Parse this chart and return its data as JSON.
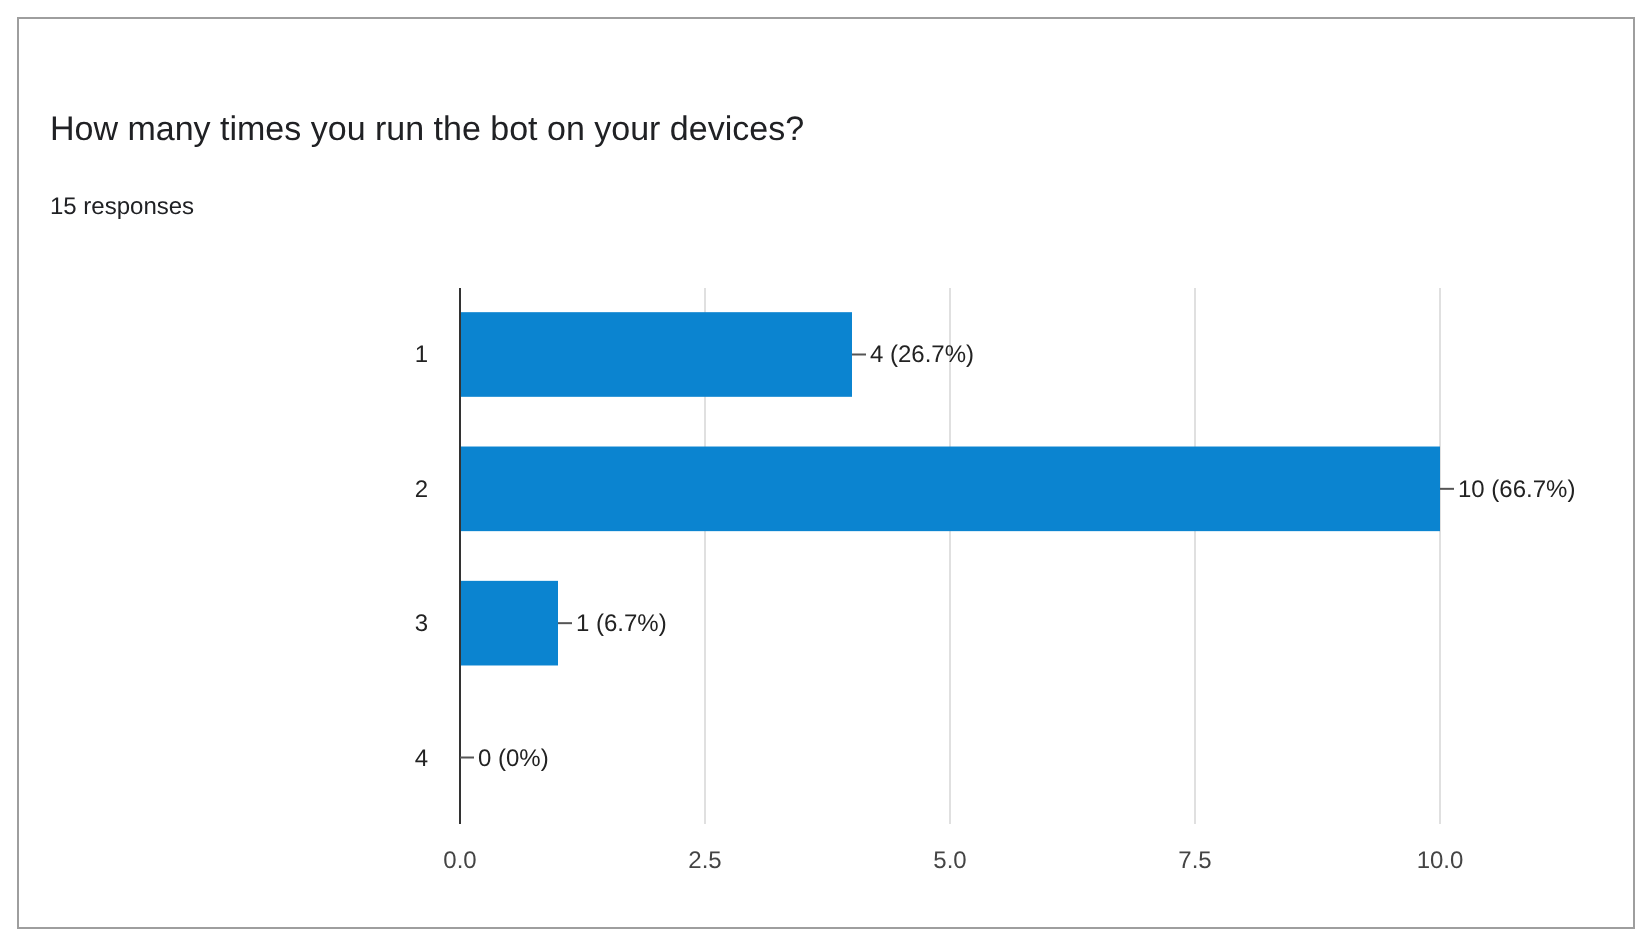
{
  "chart_data": {
    "type": "bar",
    "orientation": "horizontal",
    "title": "How many times you run the bot on your devices?",
    "subtitle": "15 responses",
    "categories": [
      "1",
      "2",
      "3",
      "4"
    ],
    "values": [
      4,
      10,
      1,
      0
    ],
    "color": "#0b84d0",
    "value_labels": [
      "4 (26.7%)",
      "10 (66.7%)",
      "1 (6.7%)",
      "0 (0%)"
    ],
    "xlim": [
      0,
      10
    ],
    "xticks": [
      {
        "value": 0,
        "label": "0.0"
      },
      {
        "value": 2.5,
        "label": "2.5"
      },
      {
        "value": 5,
        "label": "5.0"
      },
      {
        "value": 7.5,
        "label": "7.5"
      },
      {
        "value": 10,
        "label": "10.0"
      }
    ],
    "grid": "x"
  }
}
